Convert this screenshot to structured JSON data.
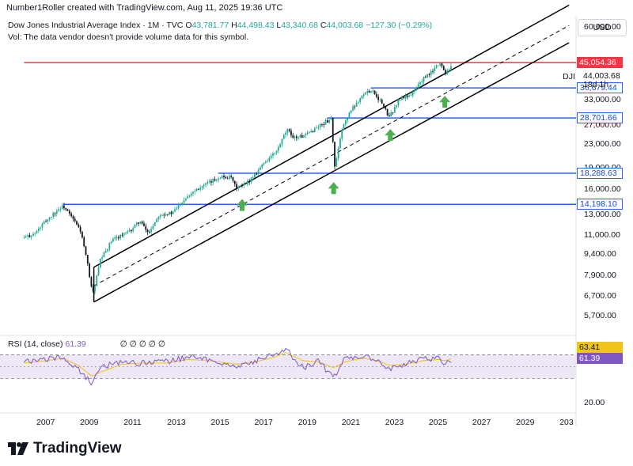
{
  "header": {
    "credit": "Number1Roller created with TradingView.com, Aug 11, 2025 19:36 UTC"
  },
  "legend": {
    "title": "Dow Jones Industrial Average Index · 1M · TVC",
    "open_label": "O",
    "open": "43,781.77",
    "high_label": "H",
    "high": "44,498.43",
    "low_label": "L",
    "low": "43,340.68",
    "close_label": "C",
    "close": "44,003.68",
    "change": "−127.30 (−0.29%)",
    "volume_note": "Vol: The data vendor doesn't provide volume data for this symbol."
  },
  "currency": "USD",
  "symbol_tag": {
    "symbol": "DJI",
    "price": "44,003.68",
    "countdown": "18d 1h"
  },
  "colors": {
    "candle_up": "#22ab94",
    "candle_down": "#131722",
    "level_line": "#2962ff",
    "resistance": "#f23645",
    "channel": "#000000",
    "arrow": "#4caf50",
    "rsi": "#7e57c2",
    "rsi_ma": "#f0c419",
    "rsi_band": "#ede7f6"
  },
  "price_axis": {
    "ticks": [
      "60,000.00",
      "33,000.00",
      "27,000.00",
      "23,000.00",
      "19,000.00",
      "16,000.00",
      "13,000.00",
      "11,000.00",
      "9,400.00",
      "7,900.00",
      "6,700.00",
      "5,700.00"
    ],
    "scale": "log"
  },
  "price_tags": [
    {
      "label": "45,054.36",
      "value": 45054.36,
      "style": "resistance"
    },
    {
      "label": "36,679.44",
      "value": 36679.44,
      "style": "level"
    },
    {
      "label": "28,701.66",
      "value": 28701.66,
      "style": "level"
    },
    {
      "label": "18,288.63",
      "value": 18288.63,
      "style": "level"
    },
    {
      "label": "14,198.10",
      "value": 14198.1,
      "style": "level"
    }
  ],
  "rsi": {
    "legend": "RSI (14, close)",
    "value": "61.39",
    "ma_value": "63.41",
    "placeholders": "∅ ∅ ∅ ∅ ∅",
    "axis_label": "20.00"
  },
  "time_axis": {
    "labels": [
      "2007",
      "2009",
      "2011",
      "2013",
      "2015",
      "2017",
      "2019",
      "2021",
      "2023",
      "2025",
      "2027",
      "2029",
      "203"
    ]
  },
  "footer": {
    "brand": "TradingView"
  },
  "chart_data": {
    "type": "line",
    "title": "Dow Jones Industrial Average Index · 1M · TVC",
    "xlabel": "",
    "ylabel": "",
    "x_range": [
      2006,
      2031
    ],
    "y_scale": "log",
    "ylim": [
      5000,
      66000
    ],
    "series": [
      {
        "name": "DJI",
        "x": [
          2006.0,
          2006.5,
          2007.0,
          2007.5,
          2007.8,
          2008.3,
          2008.6,
          2008.9,
          2009.15,
          2009.5,
          2010.0,
          2010.4,
          2010.8,
          2011.3,
          2011.7,
          2012.2,
          2012.8,
          2013.4,
          2013.9,
          2014.5,
          2015.0,
          2015.5,
          2015.7,
          2016.1,
          2016.6,
          2017.0,
          2017.6,
          2018.05,
          2018.4,
          2018.9,
          2019.5,
          2020.1,
          2020.25,
          2020.6,
          2020.9,
          2021.5,
          2021.95,
          2022.4,
          2022.75,
          2023.2,
          2023.8,
          2024.2,
          2024.7,
          2024.95,
          2025.1,
          2025.3,
          2025.6
        ],
        "y": [
          10800,
          11200,
          12400,
          13500,
          14000,
          12400,
          11400,
          8800,
          6800,
          9000,
          10500,
          11000,
          11300,
          12400,
          11200,
          13100,
          13200,
          15000,
          16100,
          16900,
          17800,
          17600,
          16300,
          16500,
          18200,
          19900,
          21900,
          26000,
          24500,
          24800,
          26800,
          28600,
          19100,
          26300,
          29800,
          34500,
          36200,
          32500,
          28800,
          33300,
          35000,
          38700,
          41800,
          44000,
          45000,
          41400,
          44000
        ]
      }
    ],
    "channel": {
      "upper": {
        "from": [
          2009.2,
          8500
        ],
        "to": [
          2031.0,
          72000
        ]
      },
      "middle": {
        "from": [
          2009.2,
          7300
        ],
        "to": [
          2031.0,
          61000
        ]
      },
      "lower": {
        "from": [
          2009.2,
          6400
        ],
        "to": [
          2031.0,
          53000
        ]
      }
    },
    "horizontal_levels": [
      45054.36,
      36679.44,
      28701.66,
      18288.63,
      14198.1
    ],
    "level_starts": [
      2006.0,
      2021.9,
      2019.9,
      2014.9,
      2007.8
    ],
    "support_arrows": [
      {
        "x": 2016.0,
        "y": 15600
      },
      {
        "x": 2020.2,
        "y": 17900
      },
      {
        "x": 2022.8,
        "y": 27600
      },
      {
        "x": 2025.3,
        "y": 36200
      }
    ],
    "rsi_series": {
      "x": [
        2006.0,
        2007.0,
        2007.8,
        2008.5,
        2009.1,
        2009.6,
        2010.5,
        2011.5,
        2012.5,
        2013.5,
        2014.5,
        2015.8,
        2016.6,
        2017.5,
        2018.0,
        2018.8,
        2019.5,
        2020.2,
        2020.7,
        2021.5,
        2022.0,
        2022.8,
        2023.5,
        2024.3,
        2025.0,
        2025.3,
        2025.6
      ],
      "rsi": [
        58,
        62,
        66,
        44,
        22,
        50,
        58,
        56,
        58,
        66,
        62,
        50,
        60,
        72,
        80,
        48,
        60,
        30,
        66,
        68,
        62,
        46,
        56,
        62,
        66,
        52,
        61.39
      ],
      "ma": [
        56,
        60,
        64,
        52,
        34,
        42,
        54,
        56,
        56,
        62,
        60,
        54,
        58,
        66,
        74,
        60,
        58,
        48,
        58,
        64,
        62,
        52,
        54,
        60,
        62,
        60,
        63.41
      ]
    }
  }
}
